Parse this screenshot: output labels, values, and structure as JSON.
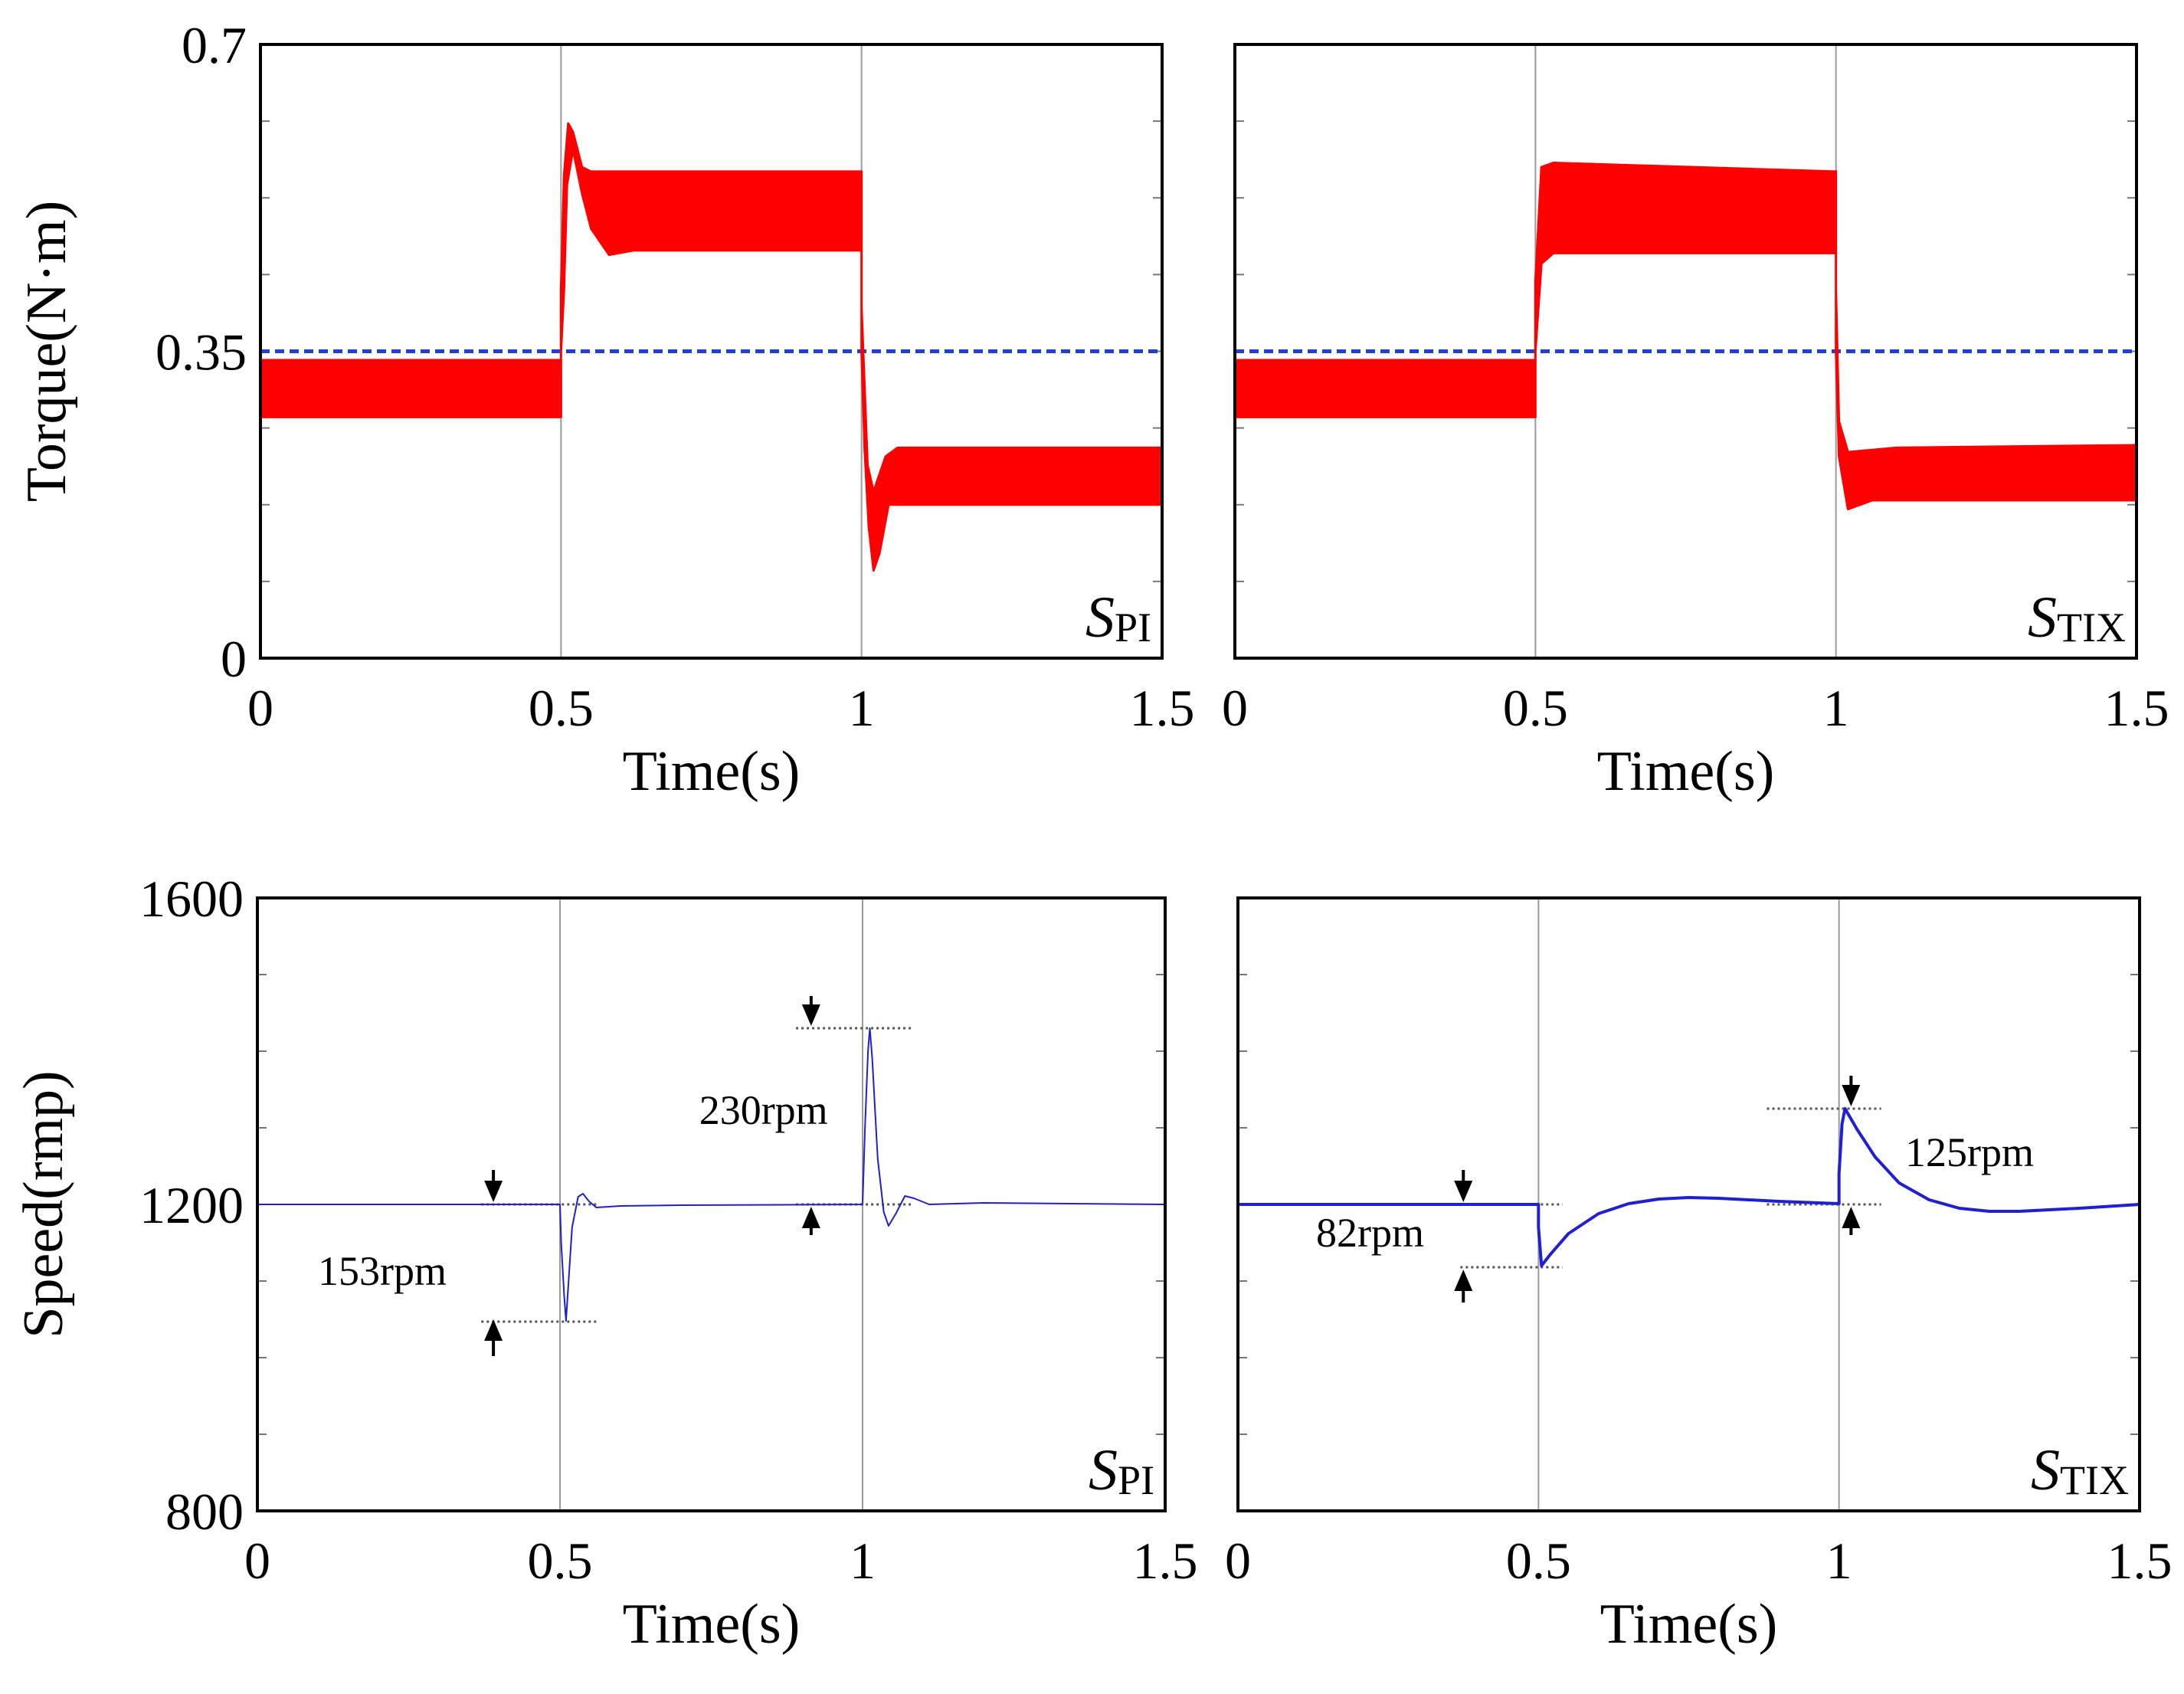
{
  "chart_data": [
    {
      "id": "torque_pi",
      "type": "line",
      "xlabel": "Time(s)",
      "ylabel": "Torque(N·m)",
      "xlim": [
        0,
        1.5
      ],
      "ylim": [
        0,
        0.7
      ],
      "xticks": [
        0,
        0.5,
        1,
        1.5
      ],
      "xtick_labels": [
        "0",
        "0.5",
        "1",
        "1.5"
      ],
      "yticks": [
        0,
        0.35,
        0.7
      ],
      "ytick_labels": [
        "0",
        "0.35",
        "0.7"
      ],
      "vlines": [
        0.5,
        1.0
      ],
      "reference_line": {
        "y": 0.35,
        "color": "#1f3fd6",
        "style": "dashed"
      },
      "label": {
        "main": "S",
        "sub": "PI"
      },
      "series": [
        {
          "name": "torque",
          "color": "#ff0000",
          "kind": "band",
          "lower": [
            [
              0,
              0.275
            ],
            [
              0.5,
              0.275
            ],
            [
              0.5,
              0.35
            ],
            [
              0.505,
              0.42
            ],
            [
              0.51,
              0.54
            ],
            [
              0.52,
              0.58
            ],
            [
              0.535,
              0.53
            ],
            [
              0.55,
              0.49
            ],
            [
              0.58,
              0.46
            ],
            [
              0.62,
              0.465
            ],
            [
              1.0,
              0.465
            ],
            [
              1.0,
              0.35
            ],
            [
              1.005,
              0.24
            ],
            [
              1.012,
              0.15
            ],
            [
              1.02,
              0.1
            ],
            [
              1.03,
              0.12
            ],
            [
              1.045,
              0.175
            ],
            [
              1.08,
              0.175
            ],
            [
              1.5,
              0.175
            ]
          ],
          "upper": [
            [
              0,
              0.34
            ],
            [
              0.5,
              0.34
            ],
            [
              0.5,
              0.42
            ],
            [
              0.505,
              0.55
            ],
            [
              0.512,
              0.61
            ],
            [
              0.52,
              0.6
            ],
            [
              0.535,
              0.56
            ],
            [
              0.55,
              0.555
            ],
            [
              1.0,
              0.555
            ],
            [
              1.0,
              0.4
            ],
            [
              1.01,
              0.22
            ],
            [
              1.02,
              0.19
            ],
            [
              1.04,
              0.23
            ],
            [
              1.06,
              0.24
            ],
            [
              1.5,
              0.24
            ]
          ]
        }
      ]
    },
    {
      "id": "torque_tix",
      "type": "line",
      "xlabel": "Time(s)",
      "ylabel": "",
      "xlim": [
        0,
        1.5
      ],
      "ylim": [
        0,
        0.7
      ],
      "xticks": [
        0,
        0.5,
        1,
        1.5
      ],
      "xtick_labels": [
        "0",
        "0.5",
        "1",
        "1.5"
      ],
      "yticks": [
        0,
        0.35,
        0.7
      ],
      "ytick_labels": [],
      "vlines": [
        0.5,
        1.0
      ],
      "reference_line": {
        "y": 0.35,
        "color": "#1f3fd6",
        "style": "dashed"
      },
      "label": {
        "main": "S",
        "sub": "TIX"
      },
      "series": [
        {
          "name": "torque",
          "color": "#ff0000",
          "kind": "band",
          "lower": [
            [
              0,
              0.275
            ],
            [
              0.5,
              0.275
            ],
            [
              0.5,
              0.35
            ],
            [
              0.51,
              0.45
            ],
            [
              0.53,
              0.462
            ],
            [
              1.0,
              0.462
            ],
            [
              1.0,
              0.35
            ],
            [
              1.005,
              0.23
            ],
            [
              1.02,
              0.17
            ],
            [
              1.06,
              0.18
            ],
            [
              1.5,
              0.18
            ]
          ],
          "upper": [
            [
              0,
              0.34
            ],
            [
              0.5,
              0.34
            ],
            [
              0.5,
              0.43
            ],
            [
              0.51,
              0.56
            ],
            [
              0.53,
              0.565
            ],
            [
              1.0,
              0.555
            ],
            [
              1.0,
              0.42
            ],
            [
              1.005,
              0.27
            ],
            [
              1.02,
              0.235
            ],
            [
              1.1,
              0.24
            ],
            [
              1.5,
              0.243
            ]
          ]
        }
      ]
    },
    {
      "id": "speed_pi",
      "type": "line",
      "xlabel": "Time(s)",
      "ylabel": "Speed(rmp)",
      "xlim": [
        0,
        1.5
      ],
      "ylim": [
        800,
        1600
      ],
      "xticks": [
        0,
        0.5,
        1,
        1.5
      ],
      "xtick_labels": [
        "0",
        "0.5",
        "1",
        "1.5"
      ],
      "yticks": [
        800,
        1200,
        1600
      ],
      "ytick_labels": [
        "800",
        "1200",
        "1600"
      ],
      "vlines": [
        0.5,
        1.0
      ],
      "label": {
        "main": "S",
        "sub": "PI"
      },
      "series": [
        {
          "name": "speed",
          "color": "#1f1fd6",
          "kind": "line",
          "width": 2,
          "points": [
            [
              0,
              1200
            ],
            [
              0.5,
              1200
            ],
            [
              0.502,
              1150
            ],
            [
              0.507,
              1080
            ],
            [
              0.51,
              1048
            ],
            [
              0.513,
              1085
            ],
            [
              0.52,
              1170
            ],
            [
              0.53,
              1210
            ],
            [
              0.538,
              1214
            ],
            [
              0.548,
              1204
            ],
            [
              0.56,
              1196
            ],
            [
              0.6,
              1198
            ],
            [
              0.7,
              1199
            ],
            [
              1.0,
              1200
            ],
            [
              1.004,
              1300
            ],
            [
              1.009,
              1400
            ],
            [
              1.012,
              1430
            ],
            [
              1.016,
              1390
            ],
            [
              1.025,
              1260
            ],
            [
              1.035,
              1190
            ],
            [
              1.043,
              1172
            ],
            [
              1.055,
              1188
            ],
            [
              1.07,
              1211
            ],
            [
              1.085,
              1208
            ],
            [
              1.11,
              1200
            ],
            [
              1.2,
              1202
            ],
            [
              1.5,
              1200
            ]
          ]
        }
      ],
      "annotations": [
        {
          "text": "153rpm",
          "x": 0.1,
          "y": 1095
        },
        {
          "text": "230rpm",
          "x": 0.73,
          "y": 1305
        }
      ],
      "dotted_refs": [
        {
          "x0": 0.37,
          "x1": 0.56,
          "y": 1200
        },
        {
          "x0": 0.37,
          "x1": 0.56,
          "y": 1047
        },
        {
          "x0": 0.89,
          "x1": 1.08,
          "y": 1430
        },
        {
          "x0": 0.89,
          "x1": 1.08,
          "y": 1200
        }
      ],
      "arrows": [
        {
          "x": 0.39,
          "y_from": 1245,
          "y_to": 1203
        },
        {
          "x": 0.39,
          "y_from": 1002,
          "y_to": 1050
        },
        {
          "x": 0.915,
          "y_from": 1472,
          "y_to": 1433
        },
        {
          "x": 0.915,
          "y_from": 1160,
          "y_to": 1197
        }
      ]
    },
    {
      "id": "speed_tix",
      "type": "line",
      "xlabel": "Time(s)",
      "ylabel": "",
      "xlim": [
        0,
        1.5
      ],
      "ylim": [
        800,
        1600
      ],
      "xticks": [
        0,
        0.5,
        1,
        1.5
      ],
      "xtick_labels": [
        "0",
        "0.5",
        "1",
        "1.5"
      ],
      "yticks": [
        800,
        1200,
        1600
      ],
      "ytick_labels": [],
      "vlines": [
        0.5,
        1.0
      ],
      "label": {
        "main": "S",
        "sub": "TIX"
      },
      "series": [
        {
          "name": "speed",
          "color": "#1f1fd6",
          "kind": "line",
          "width": 4,
          "points": [
            [
              0,
              1200
            ],
            [
              0.5,
              1200
            ],
            [
              0.5,
              1170
            ],
            [
              0.505,
              1120
            ],
            [
              0.52,
              1135
            ],
            [
              0.55,
              1162
            ],
            [
              0.6,
              1188
            ],
            [
              0.65,
              1201
            ],
            [
              0.7,
              1207
            ],
            [
              0.75,
              1209
            ],
            [
              0.8,
              1208
            ],
            [
              0.9,
              1204
            ],
            [
              1.0,
              1201
            ],
            [
              1.0,
              1240
            ],
            [
              1.005,
              1305
            ],
            [
              1.01,
              1325
            ],
            [
              1.03,
              1298
            ],
            [
              1.06,
              1262
            ],
            [
              1.1,
              1228
            ],
            [
              1.15,
              1206
            ],
            [
              1.2,
              1195
            ],
            [
              1.25,
              1191
            ],
            [
              1.3,
              1191
            ],
            [
              1.4,
              1195
            ],
            [
              1.5,
              1200
            ]
          ]
        }
      ],
      "annotations": [
        {
          "text": "82rpm",
          "x": 0.13,
          "y": 1145
        },
        {
          "text": "125rpm",
          "x": 1.11,
          "y": 1250
        }
      ],
      "dotted_refs": [
        {
          "x0": 0.37,
          "x1": 0.54,
          "y": 1200
        },
        {
          "x0": 0.37,
          "x1": 0.54,
          "y": 1118
        },
        {
          "x0": 0.88,
          "x1": 1.07,
          "y": 1325
        },
        {
          "x0": 0.88,
          "x1": 1.07,
          "y": 1200
        }
      ],
      "arrows": [
        {
          "x": 0.375,
          "y_from": 1245,
          "y_to": 1203
        },
        {
          "x": 0.375,
          "y_from": 1072,
          "y_to": 1115
        },
        {
          "x": 1.02,
          "y_from": 1368,
          "y_to": 1328
        },
        {
          "x": 1.02,
          "y_from": 1160,
          "y_to": 1197
        }
      ]
    }
  ]
}
